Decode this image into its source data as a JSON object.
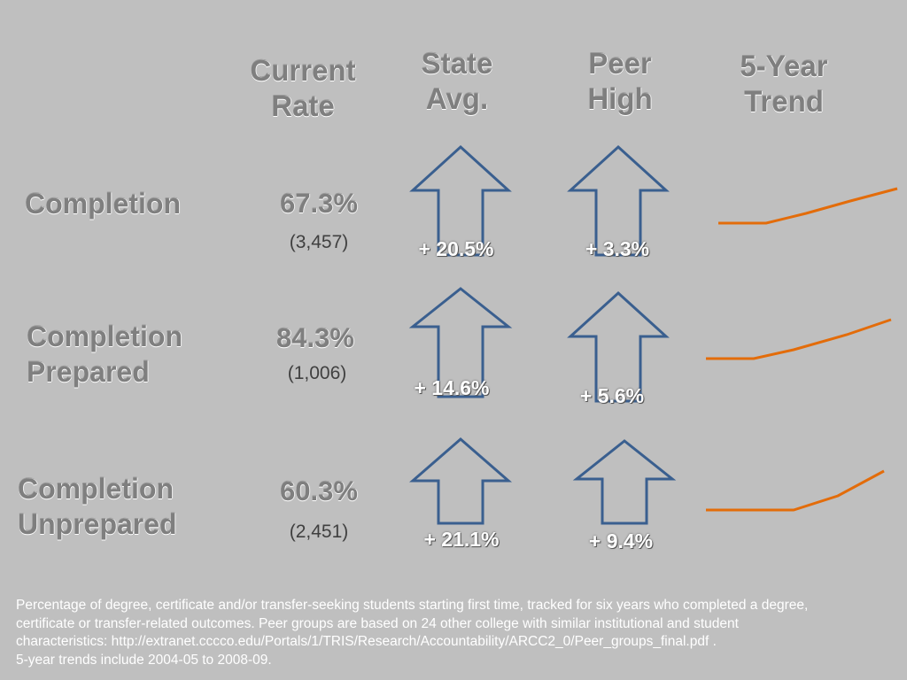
{
  "headers": {
    "current_rate": [
      "Current",
      "Rate"
    ],
    "state_avg": [
      "State",
      "Avg."
    ],
    "peer_high": [
      "Peer",
      "High"
    ],
    "trend": [
      "5-Year",
      "Trend"
    ]
  },
  "rows": [
    {
      "label": [
        "Completion",
        ""
      ],
      "rate": "67.3%",
      "count": "(3,457)",
      "state_diff": "+ 20.5%",
      "peer_diff": "+ 3.3%",
      "trend_direction": "up"
    },
    {
      "label": [
        "Completion",
        "Prepared"
      ],
      "rate": "84.3%",
      "count": "(1,006)",
      "state_diff": "+ 14.6%",
      "peer_diff": "+ 5.6%",
      "trend_direction": "up"
    },
    {
      "label": [
        "Completion",
        "Unprepared"
      ],
      "rate": "60.3%",
      "count": "(2,451)",
      "state_diff": "+ 21.1%",
      "peer_diff": "+ 9.4%",
      "trend_direction": "up"
    }
  ],
  "footnote": [
    "Percentage of degree, certificate and/or transfer-seeking students starting first time, tracked for six years who completed a degree,",
    "certificate or transfer-related outcomes. Peer groups are based on 24 other college with similar institutional and student",
    "characteristics: http://extranet.cccco.edu/Portals/1/TRIS/Research/Accountability/ARCC2_0/Peer_groups_final.pdf .",
    "5-year trends include 2004-05 to 2008-09."
  ],
  "icons": {
    "up_arrow": "up-arrow-icon",
    "trend_line": "trend-line-icon"
  },
  "colors": {
    "background": "#bfbfbf",
    "arrow_stroke": "#3a5f8f",
    "trend_line": "#e36c0a",
    "header_text": "#7f7f7f",
    "delta_text": "#ffffff"
  }
}
